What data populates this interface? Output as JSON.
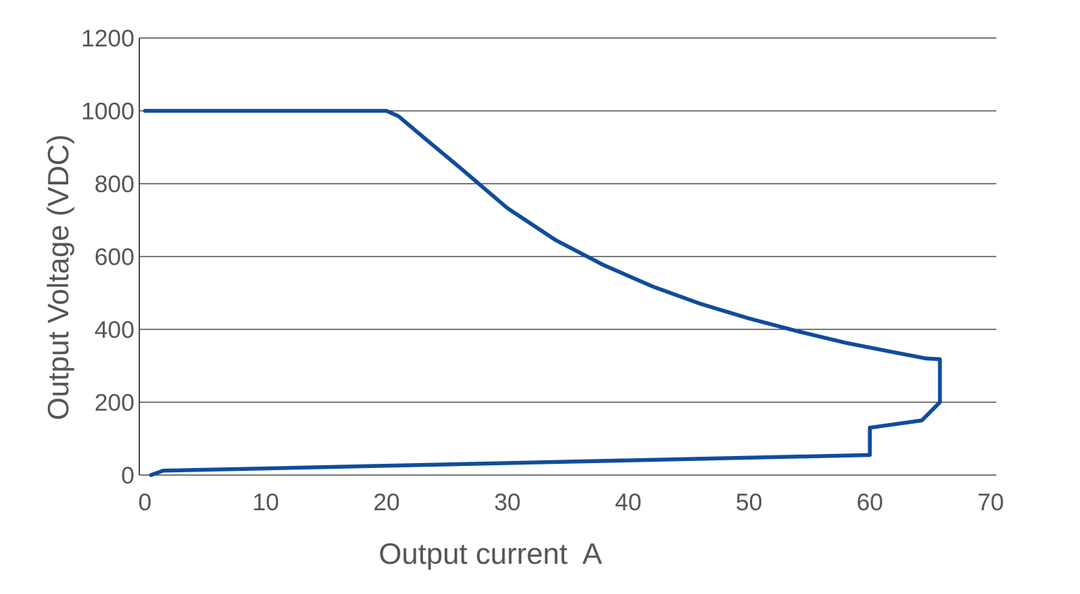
{
  "chart_data": {
    "type": "line",
    "title": "",
    "xlabel": "Output current  A",
    "ylabel": "Output Voltage (VDC)",
    "xlim": [
      0,
      70
    ],
    "ylim": [
      0,
      1200
    ],
    "x_ticks": [
      0,
      10,
      20,
      30,
      40,
      50,
      60,
      70
    ],
    "y_ticks": [
      0,
      200,
      400,
      600,
      800,
      1000,
      1200
    ],
    "grid": "horizontal",
    "legend": "none",
    "colors": {
      "series": "#0f4c9c",
      "grid": "#4d4d4d",
      "text": "#555555"
    },
    "series": [
      {
        "x": [
          0.5,
          1.5,
          60,
          60,
          64.3,
          65.8,
          65.8,
          64.7,
          62,
          58,
          54,
          50,
          46,
          42,
          38,
          34,
          30,
          26,
          23,
          21,
          20,
          0
        ],
        "y": [
          0,
          12,
          55,
          130,
          150,
          200,
          318,
          320,
          337,
          363,
          395,
          430,
          470,
          518,
          576,
          645,
          733,
          846,
          929,
          985,
          1000,
          1000
        ]
      }
    ]
  }
}
